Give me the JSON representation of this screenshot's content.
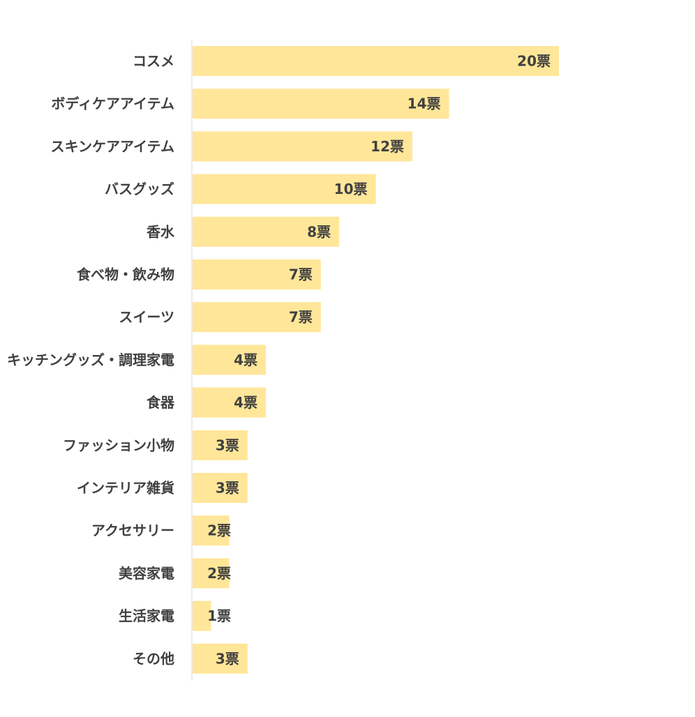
{
  "chart_data": {
    "type": "bar",
    "orientation": "horizontal",
    "title": "",
    "xlabel": "",
    "ylabel": "",
    "unit_suffix": "票",
    "xlim": [
      0,
      22
    ],
    "grid": false,
    "legend": "none",
    "bar_color": "#FFE699",
    "text_color": "#404040",
    "axis_color": "#D9D9D9",
    "categories": [
      "コスメ",
      "ボディケアアイテム",
      "スキンケアアイテム",
      "バスグッズ",
      "香水",
      "食べ物・飲み物",
      "スイーツ",
      "キッチングッズ・調理家電",
      "食器",
      "ファッション小物",
      "インテリア雑貨",
      "アクセサリー",
      "美容家電",
      "生活家電",
      "その他"
    ],
    "values": [
      20,
      14,
      12,
      10,
      8,
      7,
      7,
      4,
      4,
      3,
      3,
      2,
      2,
      1,
      3
    ],
    "data_labels": [
      "20票",
      "14票",
      "12票",
      "10票",
      "8票",
      "7票",
      "7票",
      "4票",
      "4票",
      "3票",
      "3票",
      "2票",
      "2票",
      "1票",
      "3票"
    ]
  }
}
